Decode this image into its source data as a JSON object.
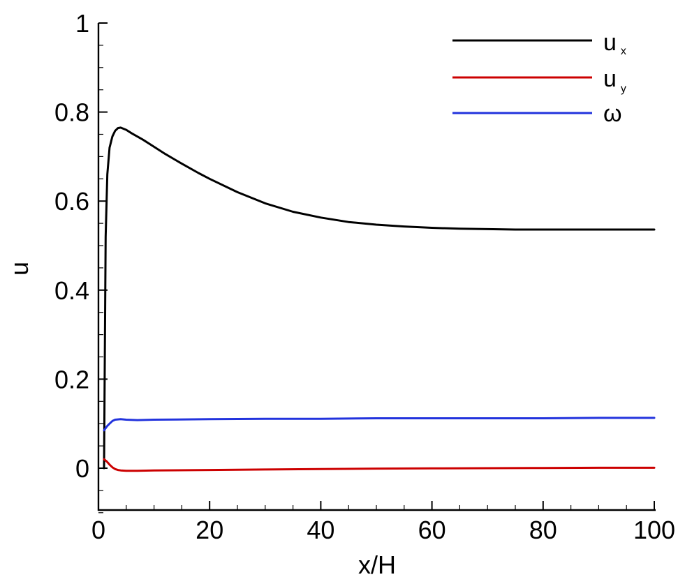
{
  "chart_data": {
    "type": "line",
    "title": "",
    "xlabel": "x/H",
    "ylabel": "u",
    "xlim": [
      0,
      100
    ],
    "ylim": [
      -0.1,
      1.0
    ],
    "x_ticks": [
      "0",
      "20",
      "40",
      "60",
      "80",
      "100"
    ],
    "y_ticks": [
      "0",
      "0.2",
      "0.4",
      "0.6",
      "0.8",
      "1"
    ],
    "grid": false,
    "legend_position": "top-right",
    "series": [
      {
        "name": "u",
        "subscript": "x",
        "color": "#000000",
        "x": [
          1.0,
          1.3,
          1.6,
          2.0,
          2.5,
          3.0,
          3.5,
          4.0,
          5.0,
          6.0,
          8.0,
          10.0,
          12.0,
          15.0,
          18.0,
          20.0,
          25.0,
          30.0,
          35.0,
          40.0,
          45.0,
          50.0,
          55.0,
          60.0,
          65.0,
          70.0,
          75.0,
          80.0,
          90.0,
          100.0
        ],
        "y": [
          0.0,
          0.52,
          0.66,
          0.72,
          0.745,
          0.758,
          0.764,
          0.765,
          0.76,
          0.752,
          0.738,
          0.722,
          0.706,
          0.684,
          0.663,
          0.65,
          0.62,
          0.595,
          0.576,
          0.563,
          0.553,
          0.547,
          0.543,
          0.54,
          0.538,
          0.537,
          0.536,
          0.536,
          0.536,
          0.536
        ]
      },
      {
        "name": "u",
        "subscript": "y",
        "color": "#cc0000",
        "x": [
          1.0,
          1.5,
          2.0,
          2.5,
          3.0,
          3.5,
          4.0,
          5.0,
          7.0,
          10.0,
          20.0,
          30.0,
          40.0,
          50.0,
          60.0,
          70.0,
          80.0,
          90.0,
          100.0
        ],
        "y": [
          0.02,
          0.015,
          0.008,
          0.002,
          -0.002,
          -0.004,
          -0.005,
          -0.006,
          -0.006,
          -0.005,
          -0.004,
          -0.003,
          -0.002,
          -0.001,
          -0.0005,
          0.0,
          0.0005,
          0.001,
          0.001
        ]
      },
      {
        "name": "ω",
        "subscript": "",
        "color": "#2233dd",
        "x": [
          1.0,
          1.3,
          1.6,
          2.0,
          2.5,
          3.0,
          4.0,
          5.0,
          7.0,
          10.0,
          20.0,
          30.0,
          40.0,
          50.0,
          60.0,
          70.0,
          80.0,
          90.0,
          100.0
        ],
        "y": [
          0.085,
          0.09,
          0.095,
          0.1,
          0.106,
          0.109,
          0.11,
          0.109,
          0.108,
          0.109,
          0.11,
          0.111,
          0.111,
          0.112,
          0.112,
          0.112,
          0.112,
          0.113,
          0.113
        ]
      }
    ]
  }
}
